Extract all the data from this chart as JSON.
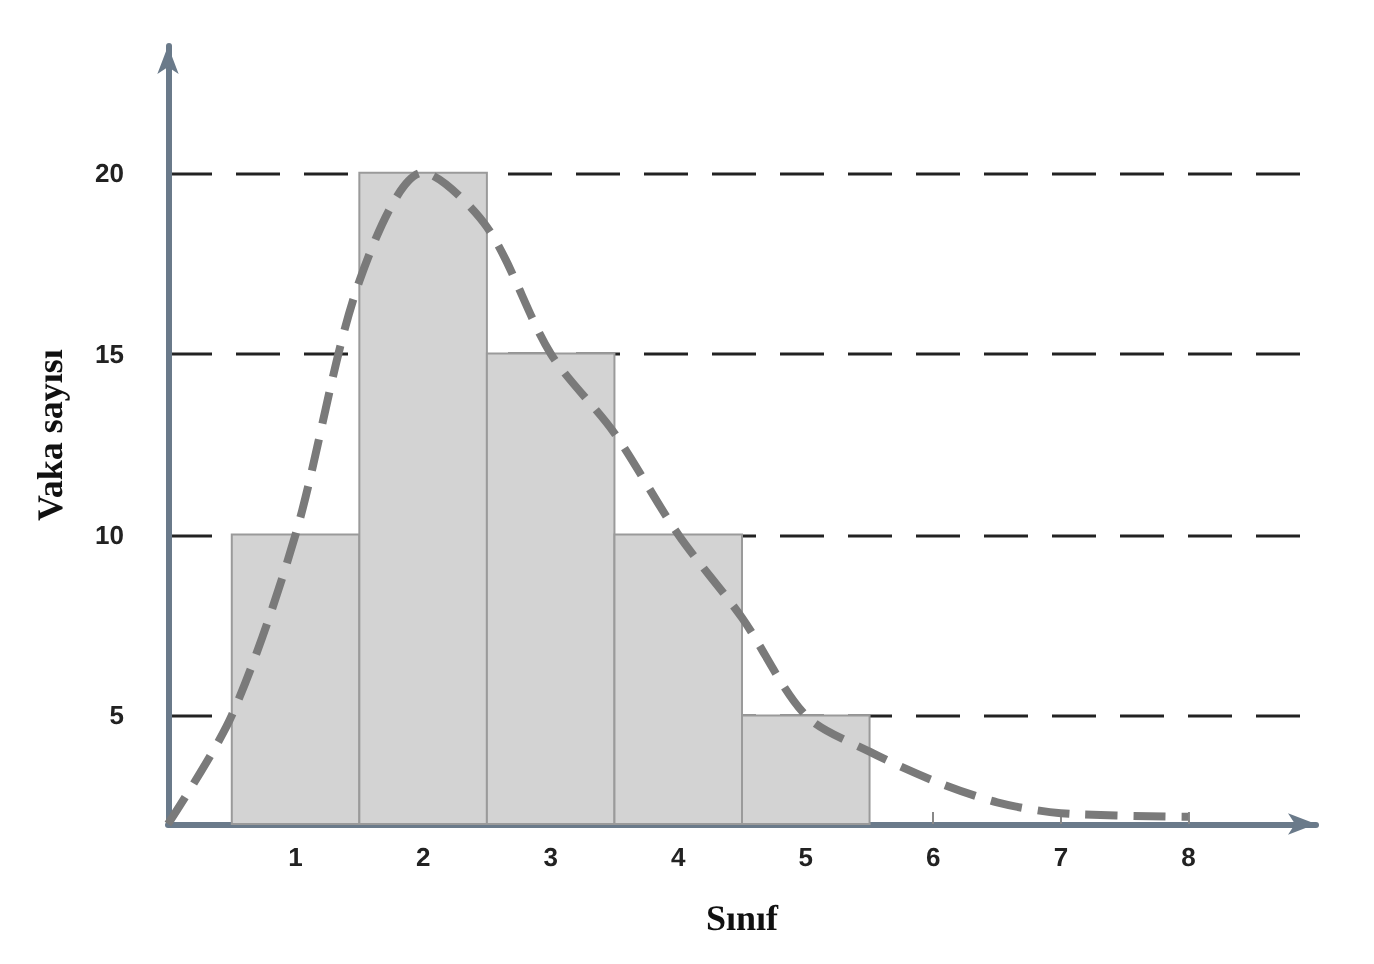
{
  "chart_data": {
    "type": "histogram",
    "xlabel": "Sınıf",
    "ylabel": "Vaka sayısı",
    "bins": [
      0.5,
      1.5,
      2.5,
      3.5,
      4.5,
      5.5
    ],
    "values": [
      10,
      20,
      15,
      10,
      5
    ],
    "color": "#d3d3d3",
    "series": [
      {
        "type": "line",
        "color": "#7a7a7a",
        "line_style": "dashed",
        "marker": "none",
        "x": [
          0,
          0.5,
          1,
          1.5,
          2,
          2.5,
          3,
          3.5,
          4,
          4.5,
          5,
          5.5,
          6,
          6.5,
          7,
          8
        ],
        "values": [
          2,
          5,
          10,
          17,
          20,
          18.5,
          15,
          12.8,
          10,
          7.7,
          5,
          4,
          3.2,
          2.6,
          2.3,
          2.2
        ]
      }
    ],
    "xlim": [
      0,
      9
    ],
    "xticks": [
      1,
      2,
      3,
      4,
      5,
      6,
      7,
      8
    ],
    "ylim": [
      2,
      23.5
    ],
    "yticks": [
      5,
      10,
      15,
      20
    ],
    "grid": "y"
  }
}
